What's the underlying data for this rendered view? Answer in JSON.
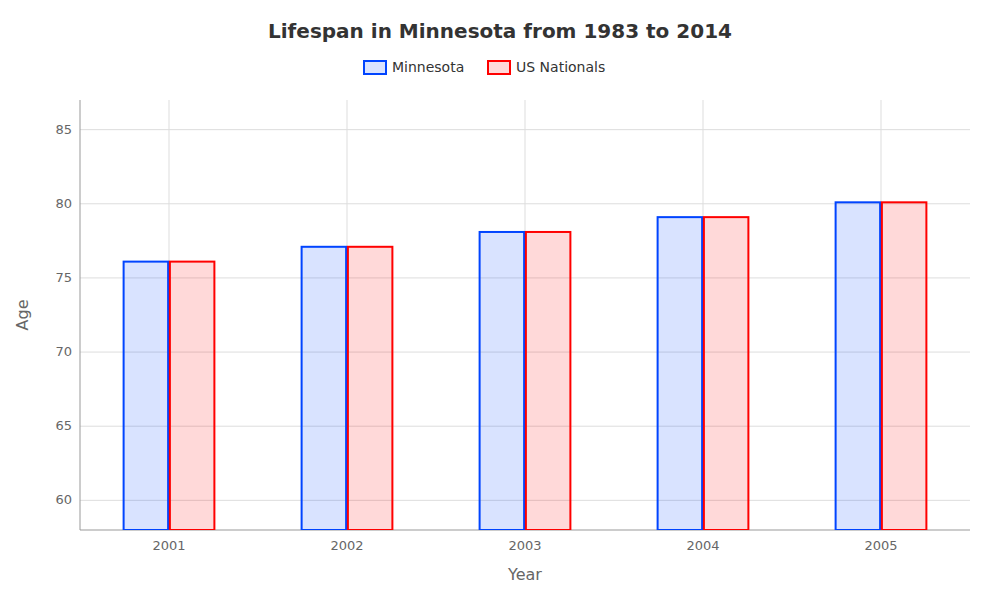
{
  "chart_data": {
    "type": "bar",
    "title": "Lifespan in Minnesota from 1983 to 2014",
    "xlabel": "Year",
    "ylabel": "Age",
    "categories": [
      "2001",
      "2002",
      "2003",
      "2004",
      "2005"
    ],
    "series": [
      {
        "name": "Minnesota",
        "color": "#0044ff",
        "values": [
          76.1,
          77.1,
          78.1,
          79.1,
          80.1
        ]
      },
      {
        "name": "US Nationals",
        "color": "#ff0000",
        "values": [
          76.1,
          77.1,
          78.1,
          79.1,
          80.1
        ]
      }
    ],
    "ylim": [
      58,
      87
    ],
    "yticks": [
      60,
      65,
      70,
      75,
      80,
      85
    ],
    "grid": true,
    "legend": "top"
  }
}
